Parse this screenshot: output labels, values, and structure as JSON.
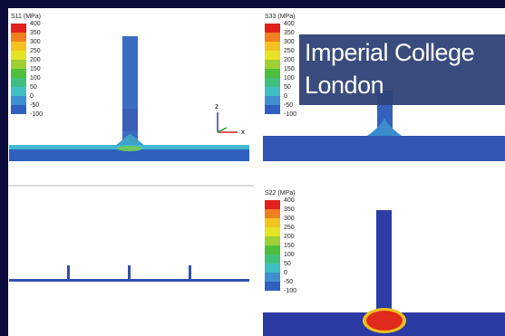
{
  "panels": [
    {
      "legend_title": "S11 (MPa)",
      "legend_labels": [
        400,
        350,
        300,
        250,
        200,
        150,
        100,
        50,
        0,
        -50,
        -100
      ]
    },
    {
      "legend_title": "S33 (MPa)",
      "legend_labels": [
        400,
        350,
        300,
        250,
        200,
        150,
        100,
        50,
        0,
        -50,
        -100
      ]
    },
    {
      "legend_title": "S22 (MPa)",
      "legend_labels": [
        400,
        350,
        300,
        250,
        200,
        150,
        100,
        50,
        0,
        -50,
        -100
      ]
    }
  ],
  "triad": {
    "z": "z",
    "x": "x"
  },
  "logo": {
    "lines": [
      "Imperial College",
      "London"
    ]
  }
}
